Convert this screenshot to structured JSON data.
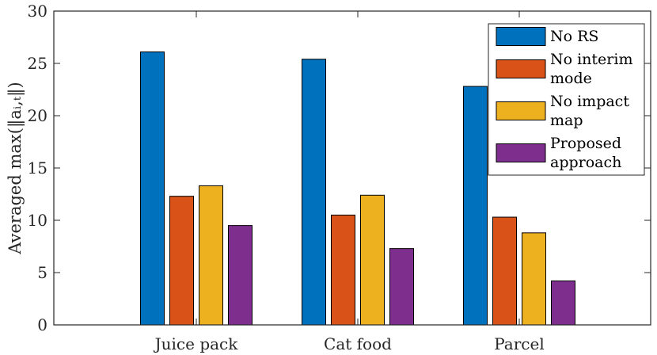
{
  "chart_data": {
    "type": "bar",
    "title": "",
    "xlabel": "",
    "ylabel": "Averaged max(‖aᵢ,ₜ‖)",
    "ylim": [
      0,
      30
    ],
    "yticks": [
      0,
      5,
      10,
      15,
      20,
      25,
      30
    ],
    "grid": false,
    "legend_position": "top-right",
    "categories": [
      "Juice pack",
      "Cat food",
      "Parcel"
    ],
    "series": [
      {
        "name": "No RS",
        "legend_lines": [
          "No RS"
        ],
        "color": "#0072BD",
        "values": [
          26.1,
          25.4,
          22.8
        ]
      },
      {
        "name": "No interim mode",
        "legend_lines": [
          "No interim",
          "mode"
        ],
        "color": "#D95319",
        "values": [
          12.3,
          10.5,
          10.3
        ]
      },
      {
        "name": "No impact map",
        "legend_lines": [
          "No impact",
          "map"
        ],
        "color": "#EDB120",
        "values": [
          13.3,
          12.4,
          8.8
        ]
      },
      {
        "name": "Proposed approach",
        "legend_lines": [
          "Proposed",
          "approach"
        ],
        "color": "#7E2F8E",
        "values": [
          9.5,
          7.3,
          4.2
        ]
      }
    ]
  }
}
